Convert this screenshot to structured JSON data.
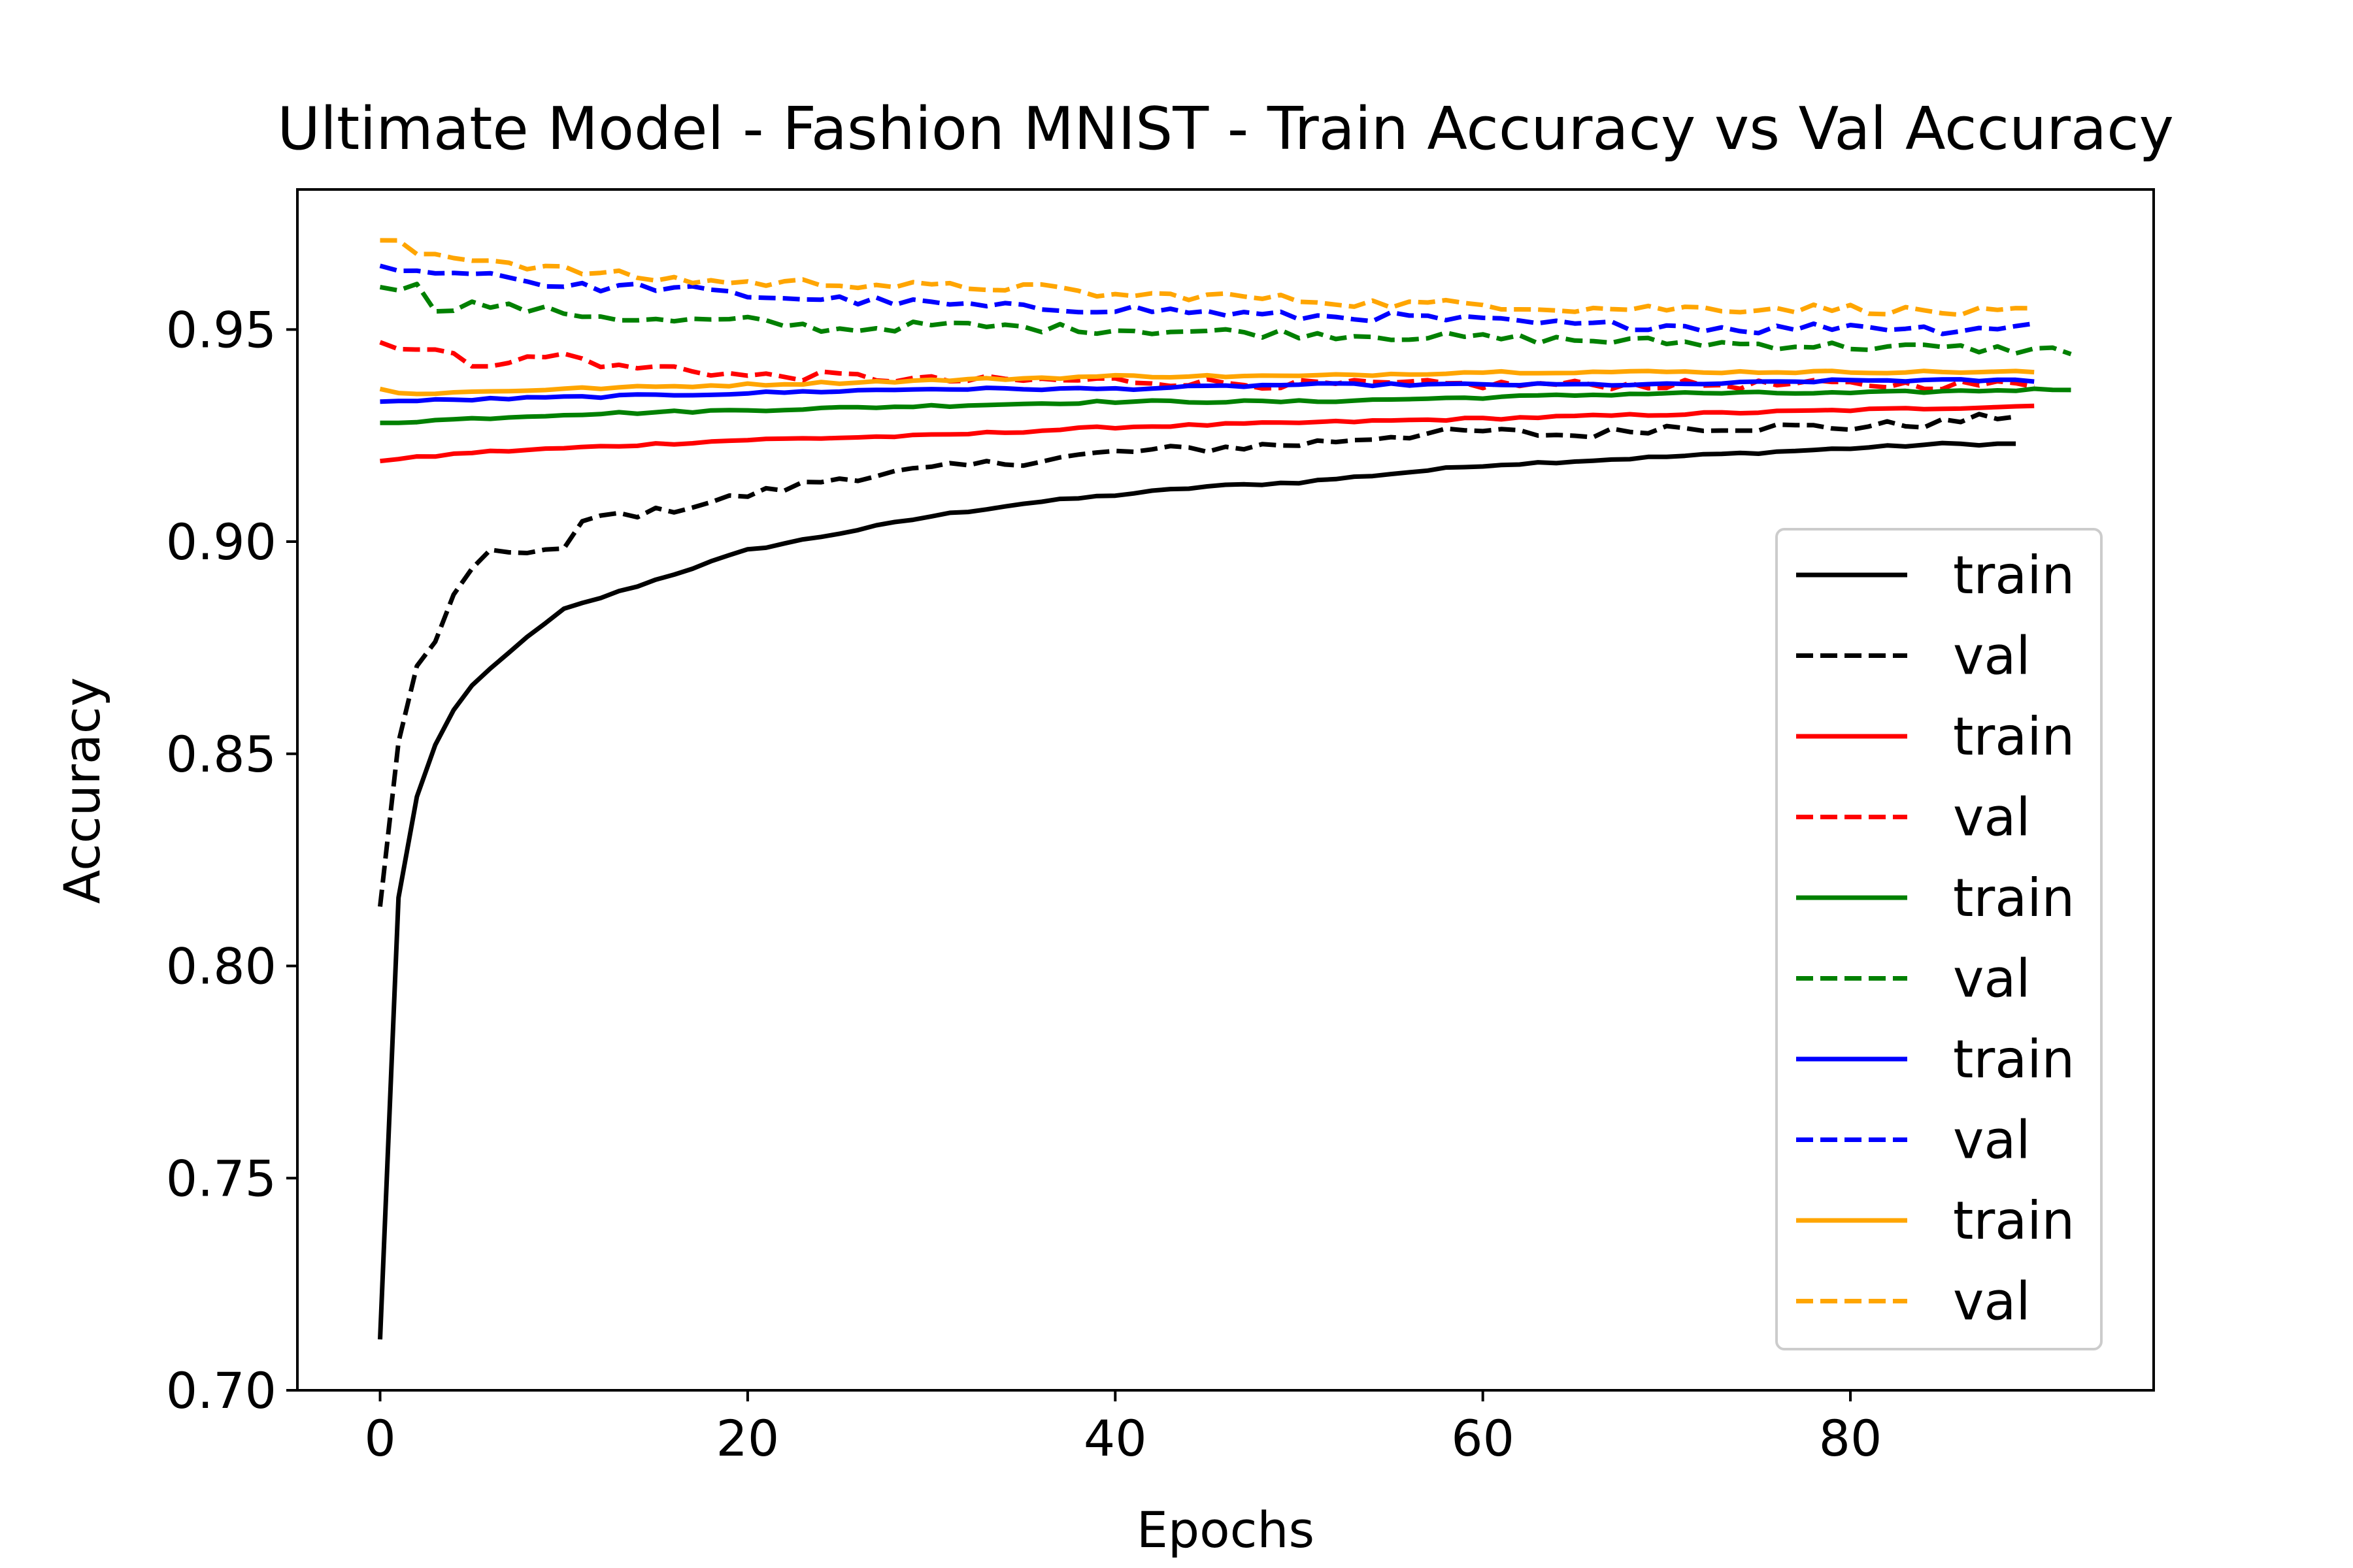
{
  "chart_data": {
    "type": "line",
    "title": "Ultimate Model - Fashion MNIST - Train Accuracy vs Val Accuracy",
    "xlabel": "Epochs",
    "ylabel": "Accuracy",
    "xlim": [
      -4.5,
      96.5
    ],
    "ylim": [
      0.7,
      0.983
    ],
    "xticks": [
      0,
      20,
      40,
      60,
      80
    ],
    "xtick_labels": [
      "0",
      "20",
      "40",
      "60",
      "80"
    ],
    "yticks": [
      0.7,
      0.75,
      0.8,
      0.85,
      0.9,
      0.95
    ],
    "ytick_labels": [
      "0.70",
      "0.75",
      "0.80",
      "0.85",
      "0.90",
      "0.95"
    ],
    "grid": false,
    "legend_position": "lower-right",
    "series": [
      {
        "name": "train",
        "color": "#000000",
        "style": "solid",
        "epochs": 90,
        "key_points": [
          [
            0,
            0.712
          ],
          [
            1,
            0.816
          ],
          [
            2,
            0.84
          ],
          [
            3,
            0.852
          ],
          [
            4,
            0.86
          ],
          [
            5,
            0.866
          ],
          [
            7,
            0.874
          ],
          [
            10,
            0.884
          ],
          [
            15,
            0.891
          ],
          [
            20,
            0.898
          ],
          [
            25,
            0.902
          ],
          [
            30,
            0.906
          ],
          [
            35,
            0.909
          ],
          [
            40,
            0.911
          ],
          [
            45,
            0.913
          ],
          [
            50,
            0.914
          ],
          [
            55,
            0.916
          ],
          [
            60,
            0.918
          ],
          [
            65,
            0.919
          ],
          [
            70,
            0.92
          ],
          [
            75,
            0.921
          ],
          [
            80,
            0.922
          ],
          [
            85,
            0.923
          ],
          [
            89,
            0.923
          ]
        ]
      },
      {
        "name": "val",
        "color": "#000000",
        "style": "dashed",
        "epochs": 90,
        "key_points": [
          [
            0,
            0.814
          ],
          [
            1,
            0.853
          ],
          [
            2,
            0.87
          ],
          [
            3,
            0.876
          ],
          [
            4,
            0.888
          ],
          [
            5,
            0.893
          ],
          [
            6,
            0.897
          ],
          [
            8,
            0.898
          ],
          [
            10,
            0.898
          ],
          [
            11,
            0.904
          ],
          [
            12,
            0.906
          ],
          [
            15,
            0.907
          ],
          [
            20,
            0.911
          ],
          [
            25,
            0.915
          ],
          [
            30,
            0.917
          ],
          [
            35,
            0.919
          ],
          [
            40,
            0.921
          ],
          [
            45,
            0.922
          ],
          [
            50,
            0.923
          ],
          [
            55,
            0.925
          ],
          [
            60,
            0.926
          ],
          [
            65,
            0.925
          ],
          [
            70,
            0.927
          ],
          [
            75,
            0.927
          ],
          [
            80,
            0.927
          ],
          [
            85,
            0.928
          ],
          [
            89,
            0.93
          ]
        ]
      },
      {
        "name": "train",
        "color": "#ff0000",
        "style": "solid",
        "epochs": 91,
        "key_points": [
          [
            0,
            0.919
          ],
          [
            5,
            0.921
          ],
          [
            10,
            0.922
          ],
          [
            20,
            0.924
          ],
          [
            30,
            0.925
          ],
          [
            40,
            0.927
          ],
          [
            50,
            0.928
          ],
          [
            60,
            0.929
          ],
          [
            70,
            0.93
          ],
          [
            80,
            0.931
          ],
          [
            90,
            0.932
          ]
        ]
      },
      {
        "name": "val",
        "color": "#ff0000",
        "style": "dashed",
        "epochs": 91,
        "key_points": [
          [
            0,
            0.947
          ],
          [
            3,
            0.945
          ],
          [
            5,
            0.942
          ],
          [
            8,
            0.943
          ],
          [
            10,
            0.944
          ],
          [
            13,
            0.941
          ],
          [
            16,
            0.941
          ],
          [
            20,
            0.939
          ],
          [
            25,
            0.939
          ],
          [
            30,
            0.938
          ],
          [
            40,
            0.938
          ],
          [
            50,
            0.937
          ],
          [
            60,
            0.937
          ],
          [
            70,
            0.937
          ],
          [
            80,
            0.937
          ],
          [
            90,
            0.937
          ]
        ]
      },
      {
        "name": "train",
        "color": "#008000",
        "style": "solid",
        "epochs": 93,
        "key_points": [
          [
            0,
            0.928
          ],
          [
            10,
            0.93
          ],
          [
            20,
            0.931
          ],
          [
            30,
            0.932
          ],
          [
            40,
            0.933
          ],
          [
            50,
            0.933
          ],
          [
            60,
            0.934
          ],
          [
            70,
            0.935
          ],
          [
            80,
            0.935
          ],
          [
            92,
            0.936
          ]
        ]
      },
      {
        "name": "val",
        "color": "#008000",
        "style": "dashed",
        "epochs": 93,
        "key_points": [
          [
            0,
            0.96
          ],
          [
            2,
            0.96
          ],
          [
            3,
            0.955
          ],
          [
            5,
            0.956
          ],
          [
            10,
            0.954
          ],
          [
            15,
            0.952
          ],
          [
            20,
            0.952
          ],
          [
            25,
            0.95
          ],
          [
            30,
            0.951
          ],
          [
            40,
            0.95
          ],
          [
            50,
            0.949
          ],
          [
            60,
            0.948
          ],
          [
            70,
            0.947
          ],
          [
            80,
            0.946
          ],
          [
            92,
            0.945
          ]
        ]
      },
      {
        "name": "train",
        "color": "#0000ff",
        "style": "solid",
        "epochs": 91,
        "key_points": [
          [
            0,
            0.933
          ],
          [
            10,
            0.934
          ],
          [
            20,
            0.935
          ],
          [
            30,
            0.936
          ],
          [
            40,
            0.936
          ],
          [
            50,
            0.937
          ],
          [
            60,
            0.937
          ],
          [
            70,
            0.937
          ],
          [
            80,
            0.938
          ],
          [
            90,
            0.938
          ]
        ]
      },
      {
        "name": "val",
        "color": "#0000ff",
        "style": "dashed",
        "epochs": 91,
        "key_points": [
          [
            0,
            0.965
          ],
          [
            3,
            0.963
          ],
          [
            5,
            0.964
          ],
          [
            10,
            0.96
          ],
          [
            15,
            0.96
          ],
          [
            20,
            0.958
          ],
          [
            25,
            0.957
          ],
          [
            30,
            0.956
          ],
          [
            35,
            0.955
          ],
          [
            40,
            0.955
          ],
          [
            45,
            0.954
          ],
          [
            50,
            0.953
          ],
          [
            55,
            0.953
          ],
          [
            60,
            0.952
          ],
          [
            65,
            0.951
          ],
          [
            70,
            0.951
          ],
          [
            75,
            0.95
          ],
          [
            80,
            0.951
          ],
          [
            85,
            0.95
          ],
          [
            90,
            0.951
          ]
        ]
      },
      {
        "name": "train",
        "color": "#ffa500",
        "style": "solid",
        "epochs": 91,
        "key_points": [
          [
            0,
            0.936
          ],
          [
            1,
            0.935
          ],
          [
            3,
            0.935
          ],
          [
            10,
            0.936
          ],
          [
            20,
            0.937
          ],
          [
            30,
            0.938
          ],
          [
            40,
            0.939
          ],
          [
            50,
            0.939
          ],
          [
            60,
            0.94
          ],
          [
            70,
            0.94
          ],
          [
            80,
            0.94
          ],
          [
            90,
            0.94
          ]
        ]
      },
      {
        "name": "val",
        "color": "#ffa500",
        "style": "dashed",
        "epochs": 91,
        "key_points": [
          [
            0,
            0.971
          ],
          [
            1,
            0.97
          ],
          [
            2,
            0.968
          ],
          [
            5,
            0.967
          ],
          [
            10,
            0.964
          ],
          [
            15,
            0.962
          ],
          [
            20,
            0.961
          ],
          [
            25,
            0.961
          ],
          [
            30,
            0.96
          ],
          [
            35,
            0.96
          ],
          [
            40,
            0.958
          ],
          [
            45,
            0.958
          ],
          [
            50,
            0.957
          ],
          [
            55,
            0.956
          ],
          [
            60,
            0.956
          ],
          [
            65,
            0.955
          ],
          [
            70,
            0.955
          ],
          [
            75,
            0.955
          ],
          [
            80,
            0.955
          ],
          [
            85,
            0.954
          ],
          [
            90,
            0.954
          ]
        ]
      }
    ]
  }
}
